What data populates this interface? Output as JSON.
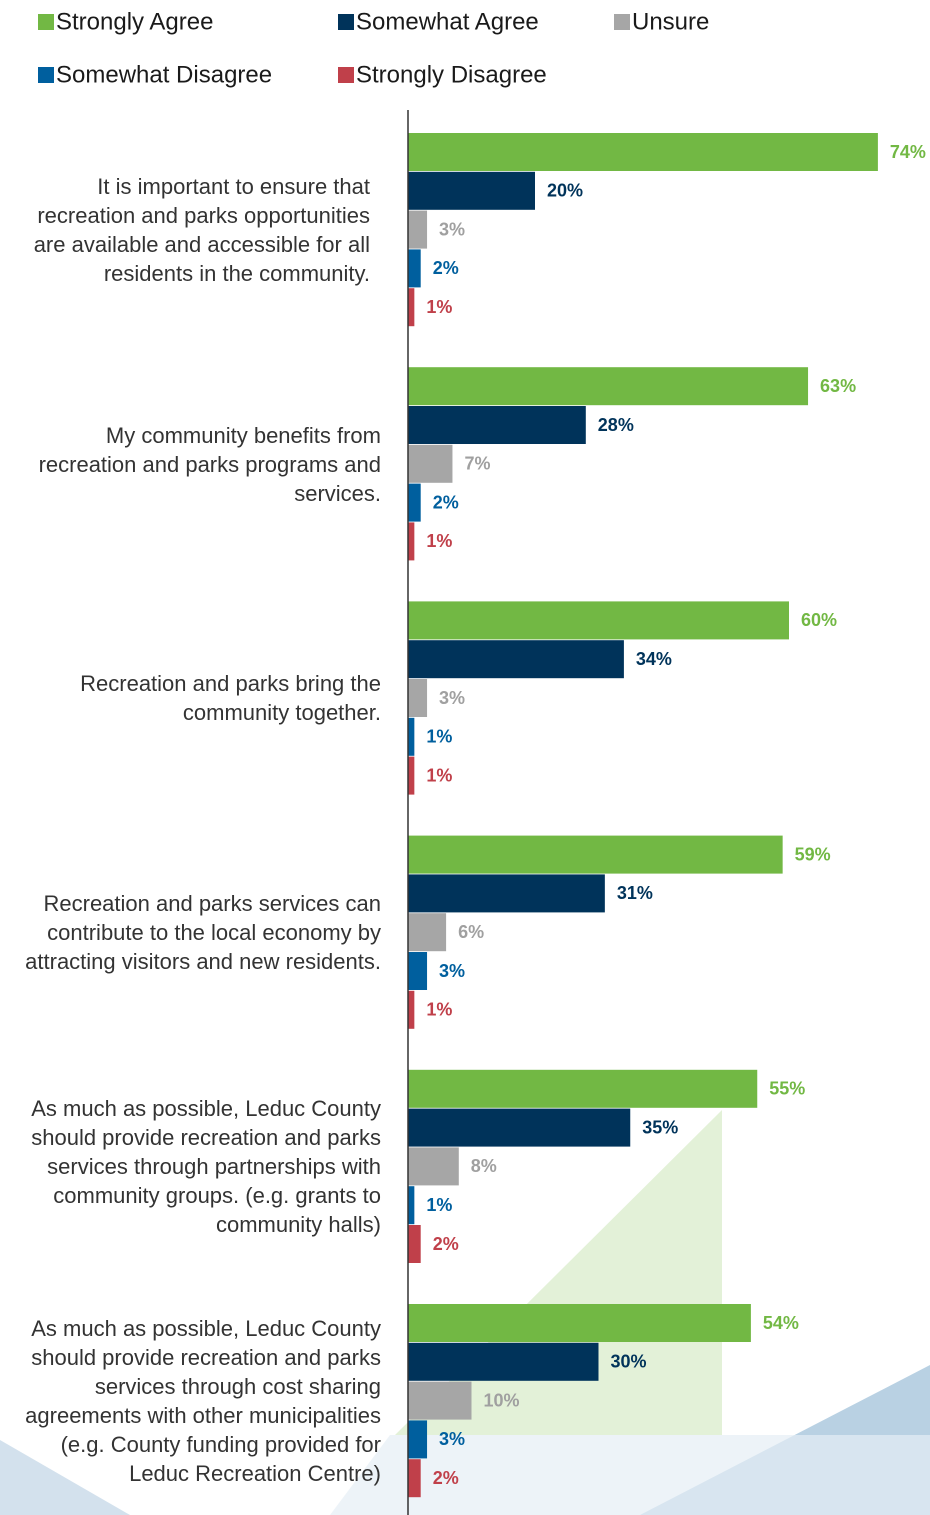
{
  "chart_data": {
    "type": "bar",
    "orientation": "horizontal",
    "categories": [
      "It is important to ensure that recreation and parks opportunities are available and accessible for all residents in the community.",
      "My community benefits from recreation and parks programs and services.",
      "Recreation and parks bring the community together.",
      "Recreation and parks services can contribute to the local economy by attracting visitors and new residents.",
      "As much as possible, Leduc County should provide recreation and parks services through partnerships with community groups. (e.g. grants to community halls)",
      "As much as possible, Leduc County should provide recreation and parks services through cost sharing agreements with other municipalities (e.g. County funding provided for Leduc Recreation Centre)"
    ],
    "series": [
      {
        "name": "Strongly Agree",
        "color": "#72b844",
        "values": [
          74,
          63,
          60,
          59,
          55,
          54
        ],
        "value_labels": [
          "74%",
          "63%",
          "60%",
          "59%",
          "55%",
          "54%"
        ]
      },
      {
        "name": "Somewhat Agree",
        "color": "#00335a",
        "values": [
          20,
          28,
          34,
          31,
          35,
          30
        ],
        "value_labels": [
          "20%",
          "28%",
          "34%",
          "31%",
          "35%",
          "30%"
        ]
      },
      {
        "name": "Unsure",
        "color": "#a6a6a6",
        "values": [
          3,
          7,
          3,
          6,
          8,
          10
        ],
        "value_labels": [
          "3%",
          "7%",
          "3%",
          "6%",
          "8%",
          "10%"
        ]
      },
      {
        "name": "Somewhat Disagree",
        "color": "#005f9e",
        "values": [
          2,
          2,
          1,
          3,
          1,
          3
        ],
        "value_labels": [
          "2%",
          "2%",
          "1%",
          "3%",
          "1%",
          "3%"
        ]
      },
      {
        "name": "Strongly Disagree",
        "color": "#c0404a",
        "values": [
          1,
          1,
          1,
          1,
          2,
          2
        ],
        "value_labels": [
          "1%",
          "1%",
          "1%",
          "1%",
          "2%",
          "2%"
        ]
      }
    ]
  }
}
